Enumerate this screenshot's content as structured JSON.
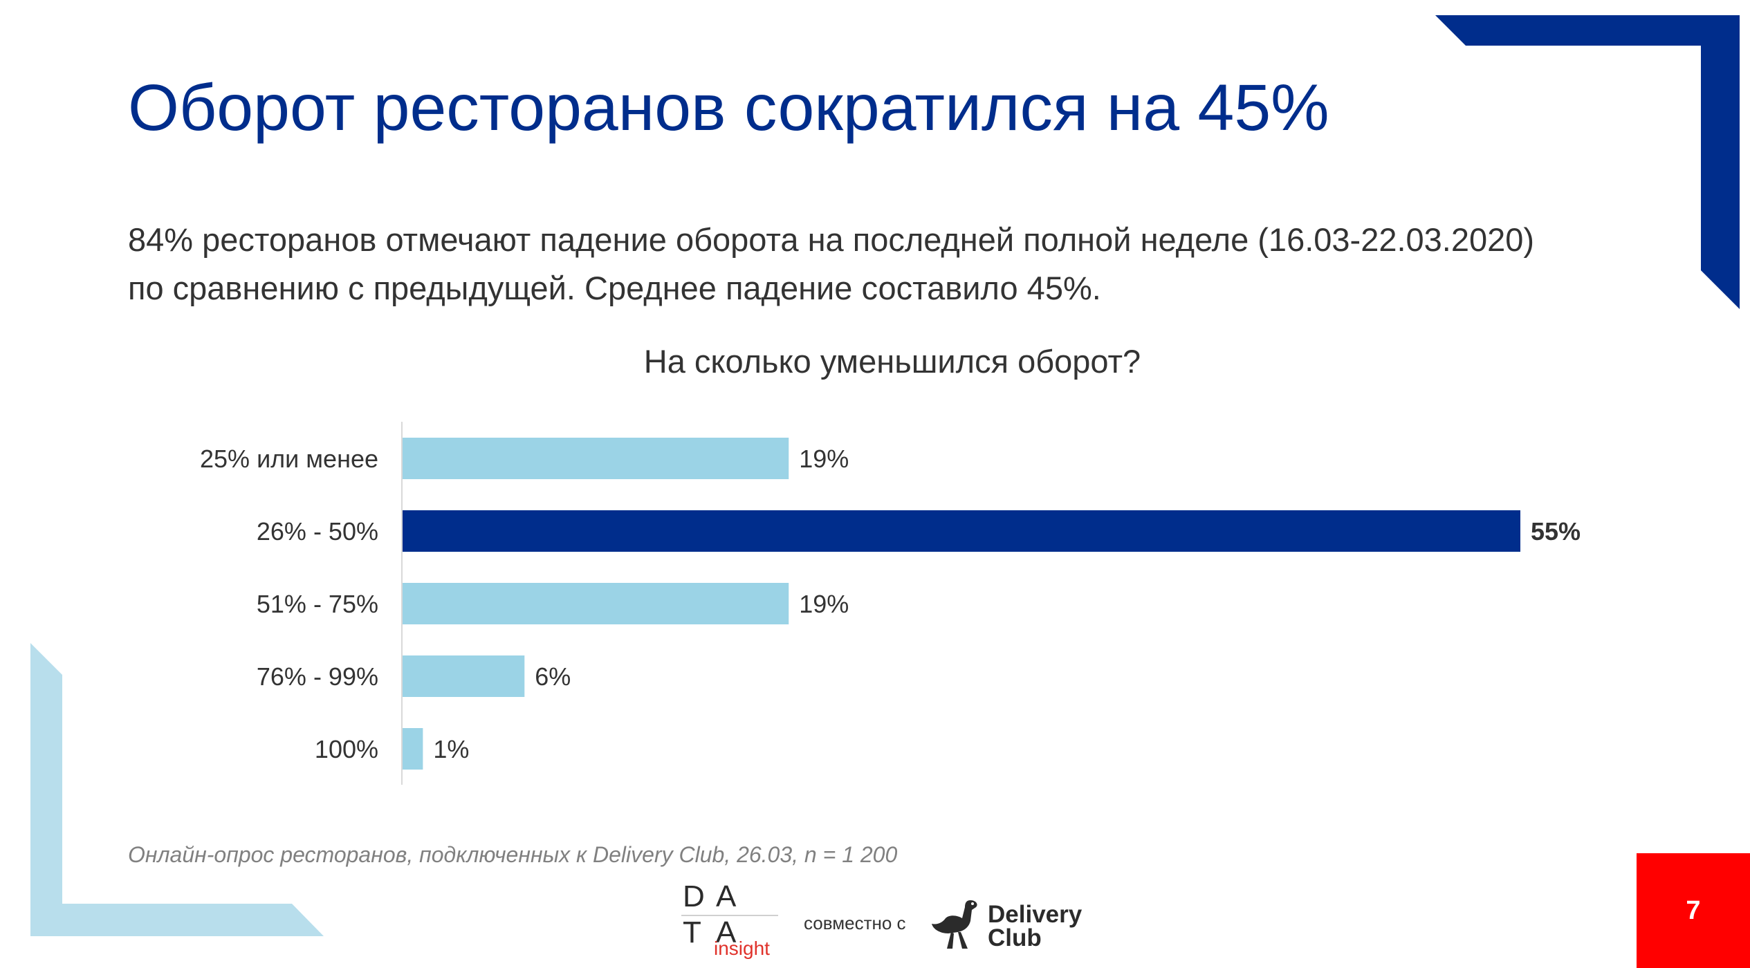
{
  "slide": {
    "title": "Оборот ресторанов сократился на 45%",
    "subtitle_line1": "84% ресторанов отмечают падение оборота на последней полной неделе (16.03-22.03.2020)",
    "subtitle_line2": "по сравнению с предыдущей. Среднее падение составило 45%.",
    "source_note": "Онлайн-опрос ресторанов, подключенных к Delivery Club, 26.03, n = 1 200",
    "page_number": "7"
  },
  "footer": {
    "data_logo_letters": [
      "D",
      "A",
      "T",
      "A"
    ],
    "data_logo_sub": "insight",
    "with_text": "совместно с",
    "partner_line1": "Delivery",
    "partner_line2": "Club"
  },
  "colors": {
    "title": "#002d8c",
    "accent_dark": "#002d8c",
    "bar_light": "#9bd3e6",
    "deco_light": "#b8deec",
    "page_box": "#ff0000"
  },
  "chart_data": {
    "type": "bar",
    "orientation": "horizontal",
    "title": "На сколько уменьшился оборот?",
    "categories": [
      "25% или менее",
      "26% - 50%",
      "51% - 75%",
      "76% - 99%",
      "100%"
    ],
    "values": [
      19,
      55,
      19,
      6,
      1
    ],
    "value_labels": [
      "19%",
      "55%",
      "19%",
      "6%",
      "1%"
    ],
    "highlight_index": 1,
    "xlim": [
      0,
      55
    ],
    "grid": false,
    "legend": "none"
  }
}
